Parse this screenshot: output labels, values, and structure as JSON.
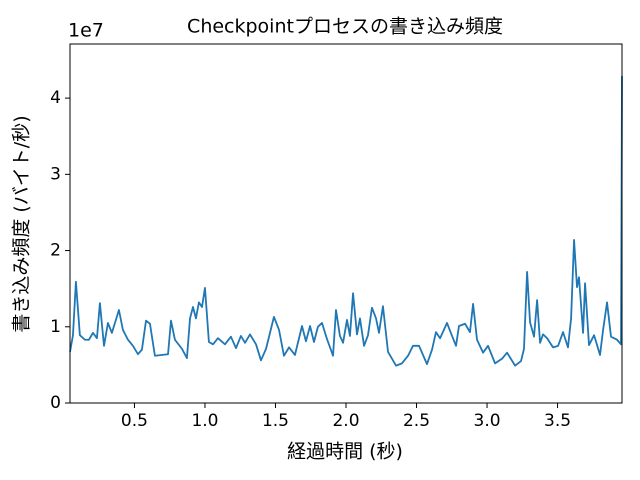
{
  "chart_data": {
    "type": "line",
    "title": "Checkpointプロセスの書き込み頻度",
    "x_label": "経過時間 (秒)",
    "y_label": "書き込み頻度 (バイト/秒)",
    "y_offset_text": "1e7",
    "color": "#1f77b4",
    "x": [
      0.043,
      0.064,
      0.085,
      0.113,
      0.149,
      0.177,
      0.206,
      0.234,
      0.255,
      0.284,
      0.312,
      0.34,
      0.39,
      0.418,
      0.454,
      0.489,
      0.525,
      0.553,
      0.582,
      0.61,
      0.645,
      0.738,
      0.759,
      0.787,
      0.837,
      0.872,
      0.894,
      0.915,
      0.936,
      0.957,
      0.979,
      1.0,
      1.028,
      1.057,
      1.092,
      1.142,
      1.184,
      1.22,
      1.255,
      1.284,
      1.319,
      1.362,
      1.397,
      1.433,
      1.489,
      1.525,
      1.56,
      1.596,
      1.638,
      1.688,
      1.716,
      1.745,
      1.773,
      1.801,
      1.83,
      1.865,
      1.908,
      1.929,
      1.957,
      1.979,
      2.007,
      2.028,
      2.05,
      2.078,
      2.099,
      2.128,
      2.156,
      2.184,
      2.213,
      2.234,
      2.262,
      2.298,
      2.355,
      2.397,
      2.44,
      2.475,
      2.518,
      2.574,
      2.61,
      2.638,
      2.667,
      2.716,
      2.752,
      2.78,
      2.801,
      2.844,
      2.879,
      2.901,
      2.929,
      2.972,
      3.007,
      3.057,
      3.106,
      3.142,
      3.199,
      3.241,
      3.262,
      3.284,
      3.305,
      3.333,
      3.355,
      3.376,
      3.397,
      3.426,
      3.468,
      3.504,
      3.539,
      3.574,
      3.596,
      3.617,
      3.638,
      3.652,
      3.681,
      3.695,
      3.723,
      3.759,
      3.801,
      3.823,
      3.851,
      3.879,
      3.922,
      3.95,
      3.957
    ],
    "values": [
      0.67,
      0.89,
      1.59,
      0.89,
      0.83,
      0.83,
      0.92,
      0.85,
      1.31,
      0.75,
      1.05,
      0.92,
      1.22,
      0.96,
      0.83,
      0.75,
      0.64,
      0.7,
      1.08,
      1.04,
      0.62,
      0.64,
      1.08,
      0.83,
      0.71,
      0.59,
      1.11,
      1.26,
      1.11,
      1.32,
      1.26,
      1.51,
      0.8,
      0.77,
      0.85,
      0.77,
      0.87,
      0.72,
      0.88,
      0.79,
      0.9,
      0.77,
      0.56,
      0.71,
      1.13,
      0.96,
      0.62,
      0.73,
      0.63,
      1.01,
      0.81,
      1.01,
      0.8,
      1.0,
      1.05,
      0.84,
      0.62,
      1.22,
      0.88,
      0.79,
      1.09,
      0.88,
      1.44,
      0.9,
      1.11,
      0.75,
      0.89,
      1.25,
      1.11,
      0.92,
      1.27,
      0.67,
      0.49,
      0.52,
      0.62,
      0.75,
      0.75,
      0.51,
      0.7,
      0.93,
      0.85,
      1.05,
      0.88,
      0.75,
      1.01,
      1.04,
      0.93,
      1.3,
      0.83,
      0.66,
      0.75,
      0.52,
      0.58,
      0.66,
      0.49,
      0.55,
      0.71,
      1.72,
      1.06,
      0.87,
      1.35,
      0.79,
      0.9,
      0.85,
      0.73,
      0.75,
      0.93,
      0.73,
      1.11,
      2.14,
      1.52,
      1.65,
      0.92,
      1.57,
      0.76,
      0.89,
      0.63,
      0.96,
      1.32,
      0.87,
      0.83,
      0.77,
      4.29
    ],
    "xlim": [
      0.043,
      3.957
    ],
    "ylim": [
      0,
      4.71
    ],
    "xticks": [
      0.5,
      {
        "value": 1,
        "label": "1.0"
      },
      1.5,
      {
        "value": 2,
        "label": "2.0"
      },
      2.5,
      {
        "value": 3,
        "label": "3.0"
      },
      3.5
    ],
    "yticks": [
      0,
      1,
      2,
      3,
      4
    ]
  }
}
